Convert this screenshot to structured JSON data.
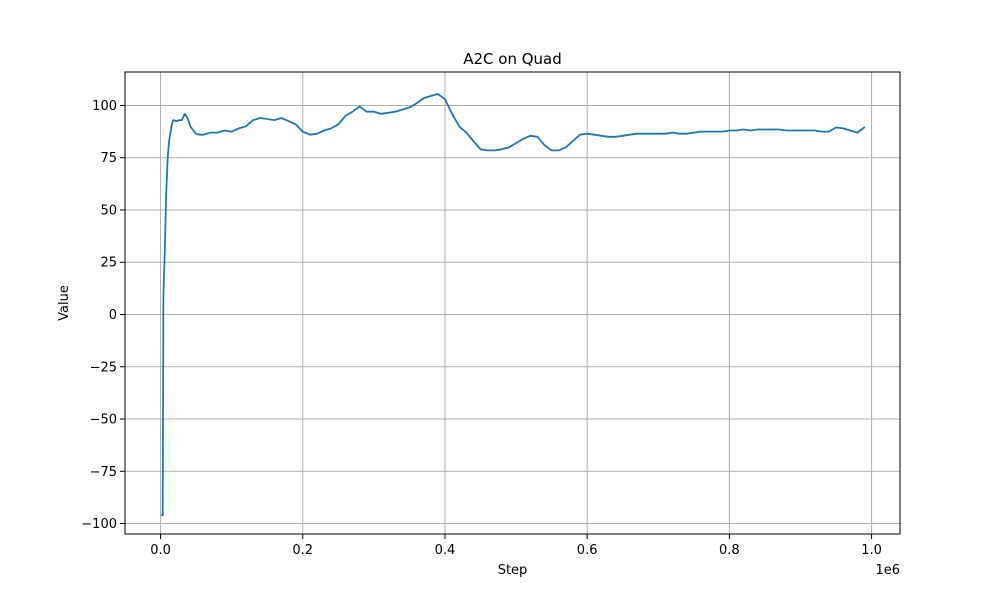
{
  "chart_data": {
    "type": "line",
    "title": "A2C on Quad",
    "xlabel": "Step",
    "ylabel": "Value",
    "x_offset_label": "1e6",
    "xlim": [
      -50000,
      1040000
    ],
    "ylim": [
      -105,
      116
    ],
    "xticks": [
      0.0,
      0.2,
      0.4,
      0.6,
      0.8,
      1.0
    ],
    "xtick_labels": [
      "0.0",
      "0.2",
      "0.4",
      "0.6",
      "0.8",
      "1.0"
    ],
    "xtick_scale": 1000000,
    "yticks": [
      -100,
      -75,
      -50,
      -25,
      0,
      25,
      50,
      75,
      100
    ],
    "ytick_labels": [
      "−100",
      "−75",
      "−50",
      "−25",
      "0",
      "25",
      "50",
      "75",
      "100"
    ],
    "grid": true,
    "line_color": "#1f77b4",
    "grid_color": "#b0b0b0",
    "series": [
      {
        "x": [
          2000,
          3000,
          4000,
          5000,
          6000,
          8000,
          10000,
          12000,
          14000,
          16000,
          18000,
          22000,
          26000,
          30000,
          34000,
          38000,
          42000,
          46000,
          50000,
          55000,
          60000,
          70000,
          80000,
          90000,
          100000,
          110000,
          120000,
          130000,
          140000,
          150000,
          160000,
          170000,
          180000,
          190000,
          200000,
          210000,
          220000,
          230000,
          240000,
          250000,
          260000,
          270000,
          280000,
          290000,
          300000,
          310000,
          320000,
          330000,
          340000,
          350000,
          360000,
          370000,
          380000,
          390000,
          400000,
          410000,
          420000,
          430000,
          440000,
          450000,
          460000,
          470000,
          480000,
          490000,
          500000,
          510000,
          520000,
          530000,
          540000,
          550000,
          560000,
          570000,
          580000,
          590000,
          600000,
          610000,
          620000,
          630000,
          640000,
          650000,
          660000,
          670000,
          680000,
          690000,
          700000,
          710000,
          720000,
          730000,
          740000,
          750000,
          760000,
          770000,
          780000,
          790000,
          800000,
          810000,
          820000,
          830000,
          840000,
          850000,
          860000,
          870000,
          880000,
          890000,
          900000,
          910000,
          920000,
          930000,
          940000,
          950000,
          960000,
          970000,
          980000,
          990000
        ],
        "y": [
          -96,
          -96,
          8,
          20,
          30,
          58,
          75,
          83,
          87,
          91,
          93,
          92.5,
          93,
          93,
          96,
          94,
          90,
          88,
          86.5,
          86,
          86,
          87,
          87,
          88,
          87.5,
          89,
          90,
          93,
          94,
          93.5,
          93,
          94,
          92.5,
          91,
          87.5,
          86,
          86.5,
          88,
          89,
          91,
          95,
          97,
          99.5,
          97,
          97,
          96,
          96.5,
          97,
          98,
          99,
          101,
          103.5,
          104.5,
          105.5,
          103,
          96,
          90,
          87,
          83,
          79,
          78.5,
          78.5,
          79,
          80,
          82,
          84,
          85.5,
          85,
          81,
          78.5,
          78.5,
          80,
          83,
          86,
          86.5,
          86,
          85.5,
          85,
          85,
          85.5,
          86,
          86.5,
          86.5,
          86.5,
          86.5,
          86.5,
          87,
          86.5,
          86.5,
          87,
          87.5,
          87.5,
          87.5,
          87.5,
          88,
          88,
          88.5,
          88,
          88.5,
          88.5,
          88.5,
          88.5,
          88,
          88,
          88,
          88,
          88,
          87.5,
          87.5,
          89.5,
          89,
          88,
          87,
          89.5
        ]
      }
    ]
  }
}
